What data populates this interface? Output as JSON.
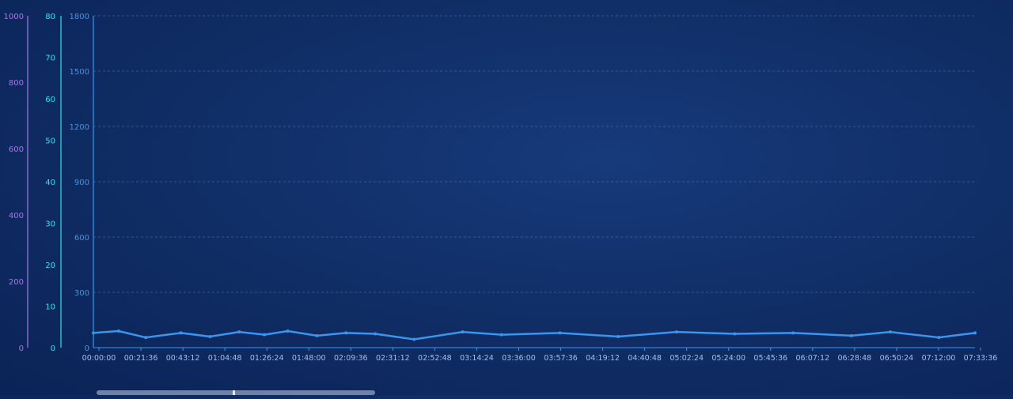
{
  "colors": {
    "purple": "#a974ee",
    "cyan": "#34e3e0",
    "blue": "#3b95ec",
    "grid": "#6f8fc4",
    "text": "#9fc1e8"
  },
  "chart_data": {
    "type": "line",
    "title": "",
    "xlabel": "",
    "grid": true,
    "x_ticks": [
      "00:00:00",
      "00:21:36",
      "00:43:12",
      "01:04:48",
      "01:26:24",
      "01:48:00",
      "02:09:36",
      "02:31:12",
      "02:52:48",
      "03:14:24",
      "03:36:00",
      "03:57:36",
      "04:19:12",
      "04:40:48",
      "05:02:24",
      "05:24:00",
      "05:45:36",
      "06:07:12",
      "06:28:48",
      "06:50:24",
      "07:12:00",
      "07:33:36"
    ],
    "x_range_minutes": [
      0,
      453.6
    ],
    "axes": [
      {
        "id": "purple-axis",
        "ylim": [
          0,
          1000
        ],
        "ticks": [
          "0",
          "200",
          "400",
          "600",
          "800",
          "1000"
        ]
      },
      {
        "id": "cyan-axis",
        "ylim": [
          0,
          80
        ],
        "ticks": [
          "0",
          "10",
          "20",
          "30",
          "40",
          "50",
          "60",
          "70",
          "80"
        ]
      },
      {
        "id": "blue-axis",
        "ylim": [
          0,
          1800
        ],
        "ticks": [
          "0",
          "300",
          "600",
          "900",
          "1200",
          "1500",
          "1800"
        ]
      }
    ],
    "series": [
      {
        "axis": "blue-axis",
        "x_minutes": [
          0,
          13,
          27,
          45,
          60,
          75,
          88,
          100,
          115,
          130,
          145,
          165,
          190,
          210,
          240,
          270,
          300,
          330,
          360,
          390,
          410,
          435,
          453.6
        ],
        "values": [
          80,
          90,
          55,
          80,
          60,
          85,
          70,
          90,
          65,
          80,
          75,
          45,
          85,
          70,
          80,
          60,
          85,
          75,
          80,
          65,
          85,
          55,
          80
        ],
        "point_every_minutes": 0.5
      }
    ]
  }
}
